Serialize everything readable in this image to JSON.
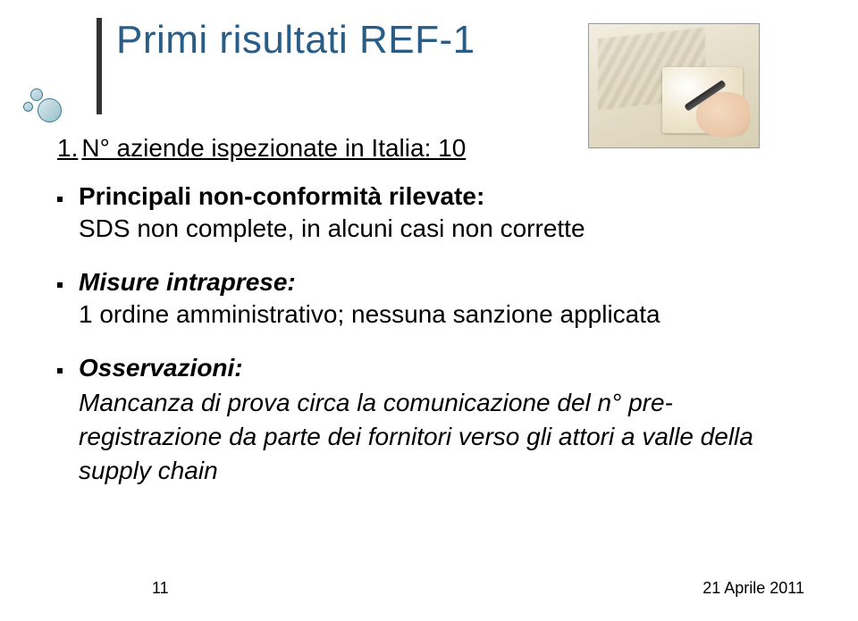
{
  "title": {
    "text": "Primi risultati REF-1",
    "color": "#2a5d86",
    "fontsize": 44
  },
  "content": {
    "headline_num": "1.",
    "headline_rest": " N° aziende ispezionate in Italia: 10",
    "principal_label": "Principali non-conformità rilevate:",
    "sds_line": "SDS non complete, in alcuni casi non corrette",
    "misure_label": "Misure intraprese:",
    "misure_line": "1 ordine amministrativo; nessuna sanzione applicata",
    "oss_label": "Osservazioni:",
    "oss_text": "Mancanza di prova circa la comunicazione del n° pre-registrazione da parte dei fornitori verso gli attori a valle della supply chain"
  },
  "footer": {
    "page": "11",
    "date": "21 Aprile 2011"
  },
  "colors": {
    "title": "#2a5d86",
    "text": "#000000",
    "bar": "#333333",
    "circle_border": "#3a7a8c",
    "background": "#ffffff"
  },
  "image": {
    "semantic": "hand-writing-on-paper"
  }
}
